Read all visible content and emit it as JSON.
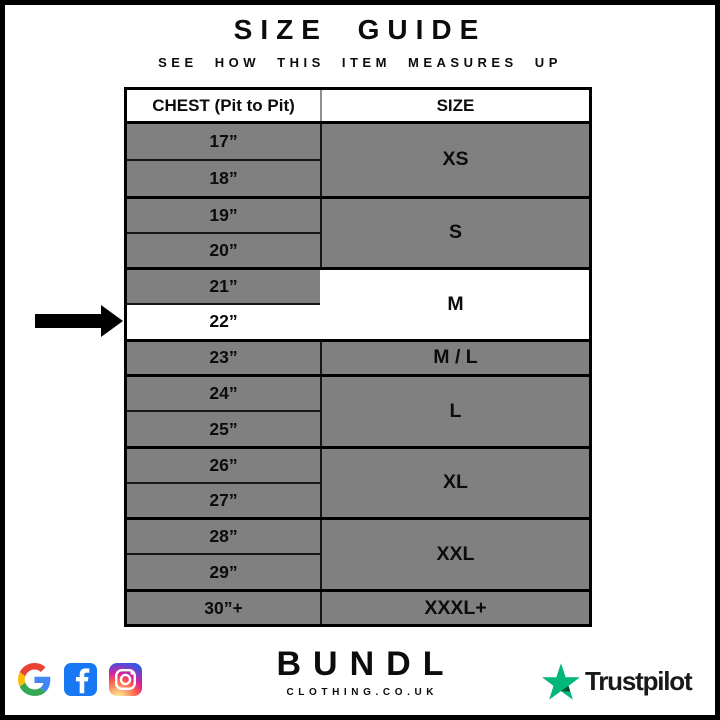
{
  "header": {
    "title": "SIZE GUIDE",
    "subtitle": "SEE HOW THIS ITEM MEASURES UP"
  },
  "chart_data": {
    "type": "table",
    "title": "SIZE GUIDE",
    "subtitle": "SEE HOW THIS ITEM MEASURES UP",
    "columns": [
      "CHEST (Pit to Pit)",
      "SIZE"
    ],
    "rows": [
      [
        "17”",
        "XS"
      ],
      [
        "18”",
        "XS"
      ],
      [
        "19”",
        "S"
      ],
      [
        "20”",
        "S"
      ],
      [
        "21”",
        "M"
      ],
      [
        "22”",
        "M"
      ],
      [
        "23”",
        "M / L"
      ],
      [
        "24”",
        "L"
      ],
      [
        "25”",
        "L"
      ],
      [
        "26”",
        "XL"
      ],
      [
        "27”",
        "XL"
      ],
      [
        "28”",
        "XXL"
      ],
      [
        "29”",
        "XXL"
      ],
      [
        "30”+",
        "XXXL+"
      ]
    ],
    "highlighted_row": [
      "22”",
      "M"
    ],
    "legend_position": "none",
    "grid": true
  },
  "table": {
    "columns": [
      "CHEST (Pit to Pit)",
      "SIZE"
    ],
    "groups": [
      {
        "chest": [
          "17”",
          "18”"
        ],
        "size": "XS",
        "highlight": false,
        "white_rows": []
      },
      {
        "chest": [
          "19”",
          "20”"
        ],
        "size": "S",
        "highlight": false,
        "white_rows": []
      },
      {
        "chest": [
          "21”",
          "22”"
        ],
        "size": "M",
        "highlight": true,
        "white_rows": [
          1
        ]
      },
      {
        "chest": [
          "23”"
        ],
        "size": "M / L",
        "highlight": false,
        "white_rows": []
      },
      {
        "chest": [
          "24”",
          "25”"
        ],
        "size": "L",
        "highlight": false,
        "white_rows": []
      },
      {
        "chest": [
          "26”",
          "27”"
        ],
        "size": "XL",
        "highlight": false,
        "white_rows": []
      },
      {
        "chest": [
          "28”",
          "29”"
        ],
        "size": "XXL",
        "highlight": false,
        "white_rows": []
      },
      {
        "chest": [
          "30”+"
        ],
        "size": "XXXL+",
        "highlight": false,
        "white_rows": []
      }
    ]
  },
  "indicator": {
    "shape": "right-arrow",
    "points_to_chest": "22”",
    "points_to_size": "M"
  },
  "footer": {
    "brand": {
      "name": "BUNDL",
      "domain": "CLOTHING.CO.UK"
    },
    "social_icons": [
      "google-icon",
      "facebook-icon",
      "instagram-icon"
    ],
    "trustpilot": {
      "label": "Trustpilot"
    }
  },
  "colors": {
    "row_gray": "#808080",
    "highlight_white": "#ffffff",
    "line_black": "#000000",
    "facebook_blue": "#1877F2",
    "trustpilot_green": "#00B67A",
    "trustpilot_dark_green": "#005128",
    "google_blue": "#4285F4",
    "google_red": "#EA4335",
    "google_yellow": "#FBBC05",
    "google_green": "#34A853"
  }
}
